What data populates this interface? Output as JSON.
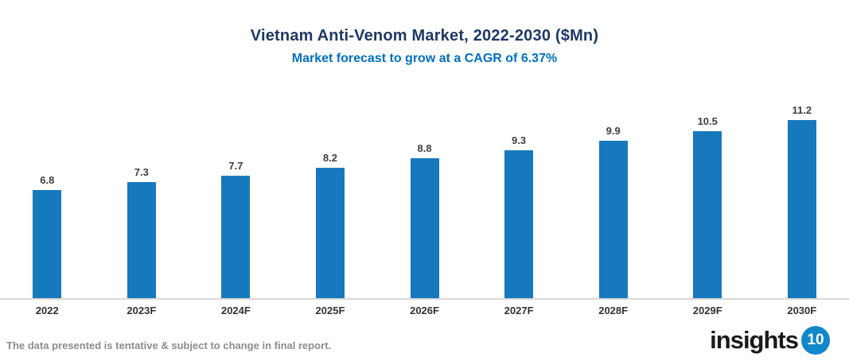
{
  "header": {
    "title": "Vietnam Anti-Venom Market, 2022-2030 ($Mn)",
    "subtitle": "Market forecast to grow at a CAGR of 6.37%"
  },
  "chart_data": {
    "type": "bar",
    "categories": [
      "2022",
      "2023F",
      "2024F",
      "2025F",
      "2026F",
      "2027F",
      "2028F",
      "2029F",
      "2030F"
    ],
    "values": [
      6.8,
      7.3,
      7.7,
      8.2,
      8.8,
      9.3,
      9.9,
      10.5,
      11.2
    ],
    "title": "Vietnam Anti-Venom Market, 2022-2030 ($Mn)",
    "subtitle": "Market forecast to grow at a CAGR of 6.37%",
    "xlabel": "",
    "ylabel": "",
    "ylim": [
      0,
      12
    ],
    "grid": false,
    "legend": false,
    "data_labels": true,
    "bar_color": "#1779BD"
  },
  "footer": {
    "disclaimer": "The data presented is tentative & subject to change in final report.",
    "logo_text": "insights",
    "logo_badge": "10"
  },
  "colors": {
    "title": "#1F3864",
    "subtitle": "#0070C0",
    "bar": "#1779BD",
    "axis_line": "#D9D9D9",
    "value_label": "#404040",
    "category_label": "#333333",
    "footer_text": "#8C8C8C",
    "logo_badge_bg": "#1287C9"
  }
}
